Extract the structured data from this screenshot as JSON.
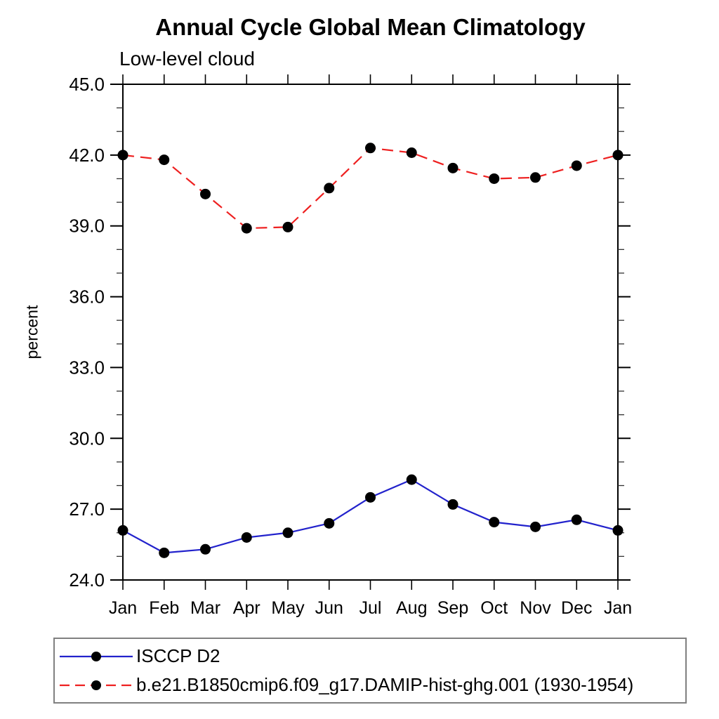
{
  "title": "Annual Cycle Global Mean Climatology",
  "subtitle": "Low-level cloud",
  "ylabel": "percent",
  "chart_data": {
    "type": "line",
    "categories": [
      "Jan",
      "Feb",
      "Mar",
      "Apr",
      "May",
      "Jun",
      "Jul",
      "Aug",
      "Sep",
      "Oct",
      "Nov",
      "Dec",
      "Jan"
    ],
    "series": [
      {
        "name": "ISCCP D2",
        "color": "#2222cc",
        "line_style": "solid",
        "marker": "filled-circle",
        "marker_color": "#000000",
        "values": [
          26.1,
          25.15,
          25.3,
          25.8,
          26.0,
          26.4,
          27.5,
          28.25,
          27.2,
          26.45,
          26.25,
          26.55,
          26.1
        ]
      },
      {
        "name": "b.e21.B1850cmip6.f09_g17.DAMIP-hist-ghg.001 (1930-1954)",
        "color": "#ee2020",
        "line_style": "dashed",
        "marker": "filled-circle",
        "marker_color": "#000000",
        "values": [
          42.0,
          41.8,
          40.35,
          38.9,
          38.95,
          40.6,
          42.3,
          42.1,
          41.45,
          41.0,
          41.05,
          41.55,
          42.0
        ]
      }
    ],
    "xlabel": "",
    "ylabel": "percent",
    "ylim": [
      24.0,
      45.0
    ],
    "y_major_step": 3.0,
    "y_minor_step": 1.0,
    "y_tick_labels": [
      "24.0",
      "27.0",
      "30.0",
      "33.0",
      "36.0",
      "39.0",
      "42.0",
      "45.0"
    ],
    "grid": "off",
    "legend_position": "bottom-left-box",
    "frame_ticks": "outward-all-sides",
    "axis_color": "#000000",
    "legend_border_color": "#808080"
  }
}
